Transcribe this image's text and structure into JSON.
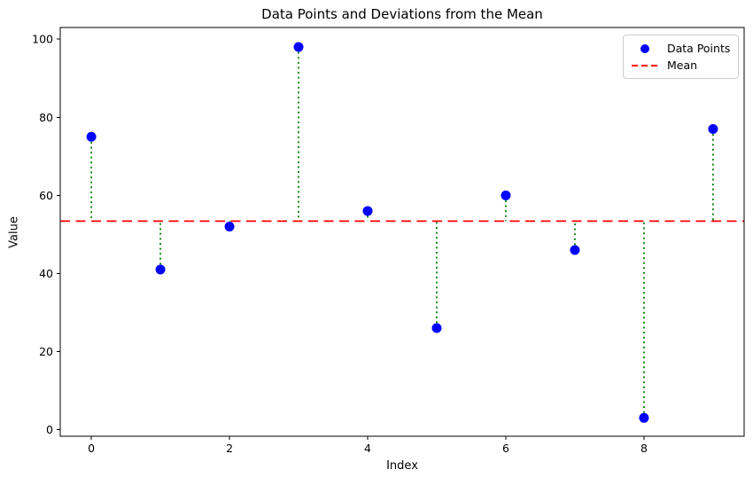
{
  "chart_data": {
    "type": "scatter",
    "title": "Data Points and Deviations from the Mean",
    "xlabel": "Index",
    "ylabel": "Value",
    "x": [
      0,
      1,
      2,
      3,
      4,
      5,
      6,
      7,
      8,
      9
    ],
    "values": [
      75,
      41,
      52,
      98,
      56,
      26,
      60,
      46,
      3,
      77
    ],
    "mean": 53.4,
    "xlim": [
      -0.45,
      9.45
    ],
    "ylim": [
      -1.7,
      103.0
    ],
    "xticks": [
      0,
      2,
      4,
      6,
      8
    ],
    "yticks": [
      0,
      20,
      40,
      60,
      80,
      100
    ],
    "grid": false,
    "legend_position": "upper-right",
    "series": [
      {
        "name": "Data Points",
        "type": "scatter",
        "marker": "circle",
        "color": "#0000ff"
      },
      {
        "name": "Mean",
        "type": "hline",
        "style": "dashed",
        "color": "#ff0000"
      }
    ],
    "deviation_lines": {
      "style": "dotted",
      "color": "#008000"
    },
    "colors": {
      "points": "#0000ff",
      "mean_line": "#ff0000",
      "deviation_lines": "#008000",
      "spines": "#000000",
      "tick_labels": "#000000",
      "legend_border": "#cccccc",
      "background": "#ffffff"
    }
  }
}
